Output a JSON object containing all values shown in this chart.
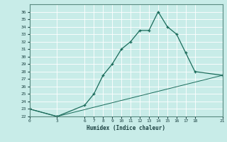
{
  "xlabel": "Humidex (Indice chaleur)",
  "ylabel": "",
  "bg_color": "#c8ece8",
  "grid_color": "#ffffff",
  "line_color": "#1a6b5a",
  "ylim": [
    22,
    37
  ],
  "yticks": [
    22,
    23,
    24,
    25,
    26,
    27,
    28,
    29,
    30,
    31,
    32,
    33,
    34,
    35,
    36
  ],
  "xticks": [
    0,
    3,
    6,
    7,
    8,
    9,
    10,
    11,
    12,
    13,
    14,
    15,
    16,
    17,
    18,
    21
  ],
  "line1_x": [
    0,
    3,
    6,
    7,
    8,
    9,
    10,
    11,
    12,
    13,
    14,
    15,
    16,
    17,
    18,
    21
  ],
  "line1_y": [
    23,
    22,
    23.5,
    25,
    27.5,
    29,
    31,
    32,
    33.5,
    33.5,
    36,
    34,
    33,
    30.5,
    28,
    27.5
  ],
  "line2_x": [
    0,
    3,
    21
  ],
  "line2_y": [
    23,
    22,
    27.5
  ],
  "xlim": [
    0,
    21
  ]
}
